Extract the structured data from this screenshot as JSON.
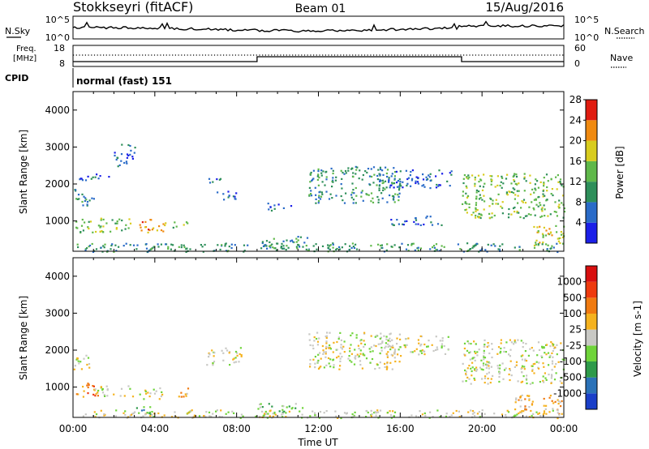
{
  "header": {
    "station": "Stokkseyri (fitACF)",
    "beam": "Beam 01",
    "date": "15/Aug/2016"
  },
  "noise_panel": {
    "left_label": "N.Sky",
    "right_label": "N.Search",
    "left_ticks": [
      "10^5",
      "10^0"
    ],
    "right_ticks": [
      "10^5",
      "10^0"
    ]
  },
  "freq_panel": {
    "left_label_1": "Freq.",
    "left_label_2": "[MHz]",
    "left_ticks": [
      "18",
      "8"
    ],
    "right_label": "Nave",
    "right_ticks": [
      "60",
      "0"
    ]
  },
  "cpid": {
    "label": "CPID",
    "text": "normal (fast) 151"
  },
  "chart_data": [
    {
      "type": "heatmap",
      "quantity": "Power",
      "ylabel": "Slant Range [km]",
      "xlabel": "",
      "ylim": [
        180,
        4500
      ],
      "yticks": [
        "1000",
        "2000",
        "3000",
        "4000"
      ],
      "xlim_hours": [
        0,
        24
      ],
      "colorbar": {
        "label": "Power [dB]",
        "ticks": [
          "4",
          "8",
          "12",
          "16",
          "20",
          "24",
          "28"
        ],
        "colors": [
          "#1b1fe8",
          "#2a6bc8",
          "#2e8f5a",
          "#5fb84a",
          "#d8cc1e",
          "#f08a10",
          "#e01c10"
        ]
      },
      "regions": [
        {
          "t": [
            0.0,
            1.0
          ],
          "r": [
            1400,
            1900
          ],
          "level": 2
        },
        {
          "t": [
            0.1,
            2.8
          ],
          "r": [
            700,
            1100
          ],
          "level": 3
        },
        {
          "t": [
            3.2,
            4.5
          ],
          "r": [
            700,
            1100
          ],
          "level": 5
        },
        {
          "t": [
            4.8,
            5.6
          ],
          "r": [
            800,
            1000
          ],
          "level": 3
        },
        {
          "t": [
            2.0,
            3.0
          ],
          "r": [
            2500,
            3100
          ],
          "level": 1
        },
        {
          "t": [
            0.2,
            1.8
          ],
          "r": [
            2100,
            2300
          ],
          "level": 1
        },
        {
          "t": [
            7.0,
            8.2
          ],
          "r": [
            1600,
            1850
          ],
          "level": 1
        },
        {
          "t": [
            6.5,
            7.2
          ],
          "r": [
            2000,
            2200
          ],
          "level": 1
        },
        {
          "t": [
            9.5,
            10.8
          ],
          "r": [
            1300,
            1500
          ],
          "level": 1
        },
        {
          "t": [
            9.0,
            11.5
          ],
          "r": [
            250,
            600
          ],
          "level": 2
        },
        {
          "t": [
            11.5,
            16.0
          ],
          "r": [
            1500,
            2500
          ],
          "level": 2
        },
        {
          "t": [
            15.0,
            18.5
          ],
          "r": [
            1900,
            2400
          ],
          "level": 1
        },
        {
          "t": [
            15.5,
            18.0
          ],
          "r": [
            900,
            1150
          ],
          "level": 1
        },
        {
          "t": [
            19.0,
            24.0
          ],
          "r": [
            1100,
            2300
          ],
          "level": 3
        },
        {
          "t": [
            22.5,
            24.0
          ],
          "r": [
            250,
            900
          ],
          "level": 4
        },
        {
          "t": [
            0.0,
            24.0
          ],
          "r": [
            180,
            420
          ],
          "level": 2
        }
      ]
    },
    {
      "type": "heatmap",
      "quantity": "Velocity",
      "ylabel": "Slant Range [km]",
      "xlabel": "Time UT",
      "ylim": [
        180,
        4500
      ],
      "yticks": [
        "1000",
        "2000",
        "3000",
        "4000"
      ],
      "xticks": [
        "00:00",
        "04:00",
        "08:00",
        "12:00",
        "16:00",
        "20:00",
        "00:00"
      ],
      "xlim_hours": [
        0,
        24
      ],
      "colorbar": {
        "label": "Velocity [m s-1]",
        "ticks": [
          "1000",
          "500",
          "100",
          "25",
          "-25",
          "-100",
          "-500",
          "-1000"
        ],
        "colors": [
          "#1a3fc9",
          "#2b72b8",
          "#2e9a4a",
          "#6fd43a",
          "#c8c8c4",
          "#f5b21e",
          "#f07a10",
          "#ee3a0e",
          "#d80f0f"
        ]
      },
      "regions": [
        {
          "t": [
            0.0,
            1.0
          ],
          "r": [
            1500,
            1900
          ],
          "level": 4
        },
        {
          "t": [
            0.1,
            1.2
          ],
          "r": [
            750,
            1150
          ],
          "level": 6
        },
        {
          "t": [
            1.0,
            3.0
          ],
          "r": [
            750,
            1050
          ],
          "level": 4
        },
        {
          "t": [
            3.2,
            4.5
          ],
          "r": [
            700,
            1000
          ],
          "level": 4
        },
        {
          "t": [
            4.8,
            5.6
          ],
          "r": [
            750,
            1000
          ],
          "level": 5
        },
        {
          "t": [
            6.5,
            8.2
          ],
          "r": [
            1600,
            2100
          ],
          "level": 4
        },
        {
          "t": [
            9.0,
            11.2
          ],
          "r": [
            300,
            600
          ],
          "level": 3
        },
        {
          "t": [
            3.0,
            4.0
          ],
          "r": [
            250,
            500
          ],
          "level": 2
        },
        {
          "t": [
            11.5,
            16.0
          ],
          "r": [
            1500,
            2500
          ],
          "level": 4
        },
        {
          "t": [
            15.0,
            18.5
          ],
          "r": [
            1900,
            2400
          ],
          "level": 4
        },
        {
          "t": [
            19.0,
            24.0
          ],
          "r": [
            1100,
            2300
          ],
          "level": 4
        },
        {
          "t": [
            21.5,
            24.0
          ],
          "r": [
            250,
            800
          ],
          "level": 5
        },
        {
          "t": [
            0.0,
            24.0
          ],
          "r": [
            180,
            400
          ],
          "level": 4
        }
      ]
    }
  ],
  "time_series": {
    "noise_sky_hint": "",
    "freq_steps_hours": [
      0,
      9,
      19,
      24
    ]
  }
}
